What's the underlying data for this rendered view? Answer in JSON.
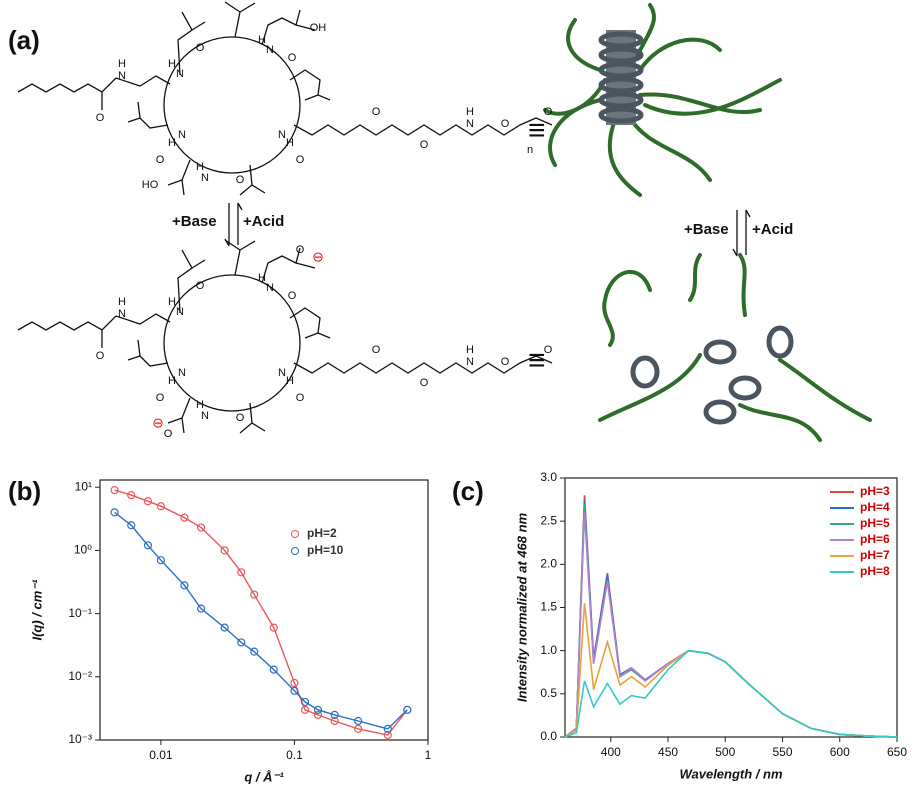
{
  "panel_a": {
    "label": "(a)",
    "base_left": "+Base",
    "acid_left": "+Acid",
    "base_right": "+Base",
    "acid_right": "+Acid",
    "equiv_top": "≡",
    "equiv_bottom": "≡",
    "atoms_top": [
      "H",
      "N",
      "O",
      "H",
      "N",
      "O",
      "OH",
      "H",
      "N",
      "O",
      "N",
      "H",
      "O",
      "N",
      "H",
      "O",
      "HO",
      "H",
      "N",
      "O",
      "O",
      "H",
      "N",
      "O",
      "O",
      "n",
      "O"
    ],
    "atoms_bottom": [
      "H",
      "N",
      "O",
      "H",
      "N",
      "O",
      "O",
      "⊖",
      "H",
      "N",
      "O",
      "N",
      "H",
      "O",
      "N",
      "H",
      "O",
      "O",
      "⊖",
      "H",
      "N",
      "O",
      "O",
      "H",
      "N",
      "O",
      "O",
      "O"
    ]
  },
  "chart_data": [
    {
      "type": "scatter",
      "panel_label": "(b)",
      "xlabel": "q / Å⁻¹",
      "ylabel": "I(q) / cm⁻¹",
      "xscale": "log",
      "yscale": "log",
      "xlim": [
        0.0035,
        1
      ],
      "ylim": [
        0.001,
        13
      ],
      "xticks": [
        0.01,
        0.1,
        1
      ],
      "yticks": [
        {
          "value": 0.001,
          "label": "10⁻³"
        },
        {
          "value": 0.01,
          "label": "10⁻²"
        },
        {
          "value": 0.1,
          "label": "10⁻¹"
        },
        {
          "value": 1,
          "label": "10⁰"
        },
        {
          "value": 10,
          "label": "10¹"
        }
      ],
      "legend": "upper right",
      "x": [
        0.0045,
        0.006,
        0.008,
        0.01,
        0.015,
        0.02,
        0.03,
        0.04,
        0.05,
        0.07,
        0.1,
        0.12,
        0.15,
        0.2,
        0.3,
        0.5,
        0.7
      ],
      "series": [
        {
          "name": "pH=2",
          "color": "#e8585a",
          "values": [
            9,
            7.5,
            6,
            5,
            3.3,
            2.3,
            1.0,
            0.45,
            0.2,
            0.06,
            0.008,
            0.003,
            0.0025,
            0.002,
            0.0015,
            0.0012,
            0.003
          ]
        },
        {
          "name": "pH=10",
          "color": "#2e6fc4",
          "values": [
            4,
            2.5,
            1.2,
            0.7,
            0.28,
            0.12,
            0.06,
            0.035,
            0.025,
            0.013,
            0.006,
            0.004,
            0.003,
            0.0025,
            0.002,
            0.0015,
            0.003
          ]
        }
      ]
    },
    {
      "type": "line",
      "panel_label": "(c)",
      "xlabel": "Wavelength / nm",
      "ylabel": "Intensity normalized at 468 nm",
      "xlim": [
        360,
        650
      ],
      "ylim": [
        0,
        3
      ],
      "xticks": [
        400,
        450,
        500,
        550,
        600,
        650
      ],
      "yticks": [
        {
          "value": 0,
          "label": "0.0"
        },
        0.5,
        {
          "value": 1,
          "label": "1.0"
        },
        1.5,
        {
          "value": 2,
          "label": "2.0"
        },
        2.5,
        {
          "value": 3,
          "label": "3.0"
        }
      ],
      "legend": "upper right",
      "x": [
        360,
        370,
        377,
        385,
        397,
        408,
        418,
        430,
        450,
        468,
        485,
        500,
        520,
        550,
        575,
        600,
        625,
        650
      ],
      "series": [
        {
          "name": "pH=3",
          "color": "#e8403f",
          "values": [
            0,
            0.1,
            2.8,
            0.9,
            1.9,
            0.72,
            0.8,
            0.66,
            0.85,
            1.0,
            0.97,
            0.87,
            0.62,
            0.27,
            0.1,
            0.03,
            0.01,
            0
          ]
        },
        {
          "name": "pH=4",
          "color": "#2a6fd1",
          "values": [
            0,
            0.1,
            2.75,
            0.9,
            1.88,
            0.72,
            0.8,
            0.66,
            0.85,
            1.0,
            0.97,
            0.87,
            0.62,
            0.27,
            0.1,
            0.03,
            0.01,
            0
          ]
        },
        {
          "name": "pH=5",
          "color": "#3aaa7a",
          "values": [
            0,
            0.1,
            2.7,
            0.85,
            1.82,
            0.7,
            0.78,
            0.65,
            0.85,
            1.0,
            0.97,
            0.87,
            0.62,
            0.27,
            0.1,
            0.03,
            0.01,
            0
          ]
        },
        {
          "name": "pH=6",
          "color": "#b87fd0",
          "values": [
            0,
            0.1,
            2.6,
            0.85,
            1.8,
            0.7,
            0.8,
            0.65,
            0.85,
            1.0,
            0.97,
            0.87,
            0.62,
            0.27,
            0.1,
            0.03,
            0.01,
            0
          ]
        },
        {
          "name": "pH=7",
          "color": "#e6a23c",
          "values": [
            0,
            0.08,
            1.55,
            0.55,
            1.1,
            0.6,
            0.7,
            0.58,
            0.83,
            1.0,
            0.97,
            0.87,
            0.62,
            0.27,
            0.1,
            0.03,
            0.01,
            0
          ]
        },
        {
          "name": "pH=8",
          "color": "#35c9c9",
          "values": [
            0,
            0.05,
            0.65,
            0.35,
            0.62,
            0.38,
            0.48,
            0.45,
            0.78,
            1.0,
            0.97,
            0.87,
            0.62,
            0.27,
            0.1,
            0.03,
            0.01,
            0
          ]
        }
      ]
    }
  ]
}
